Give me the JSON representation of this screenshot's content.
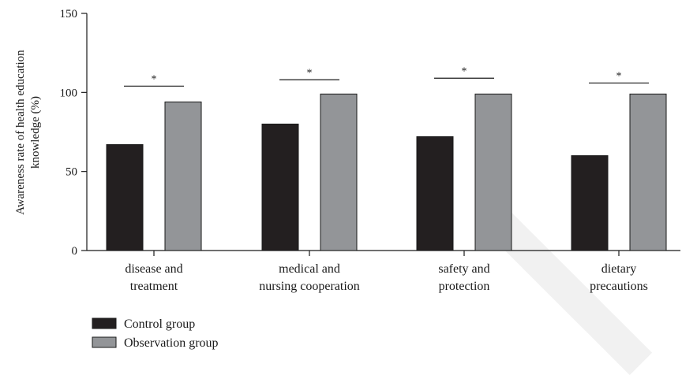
{
  "chart_data": {
    "type": "bar",
    "categories": [
      [
        "disease and",
        "treatment"
      ],
      [
        "medical and",
        "nursing cooperation"
      ],
      [
        "safety and",
        "protection"
      ],
      [
        "dietary",
        "precautions"
      ]
    ],
    "series": [
      {
        "name": "Control group",
        "values": [
          67,
          80,
          72,
          60
        ],
        "color": "#231f20"
      },
      {
        "name": "Observation group",
        "values": [
          94,
          99,
          99,
          99
        ],
        "color": "#939598"
      }
    ],
    "ylabel": [
      "Awareness rate of health education",
      "knowledge (%)"
    ],
    "ylim": [
      0,
      150
    ],
    "yticks": [
      0,
      50,
      100,
      150
    ],
    "significance": [
      {
        "category_index": 0,
        "label": "*",
        "y": 104
      },
      {
        "category_index": 1,
        "label": "*",
        "y": 108
      },
      {
        "category_index": 2,
        "label": "*",
        "y": 109
      },
      {
        "category_index": 3,
        "label": "*",
        "y": 106
      }
    ],
    "grid": false,
    "legend_position": "bottom-left"
  }
}
